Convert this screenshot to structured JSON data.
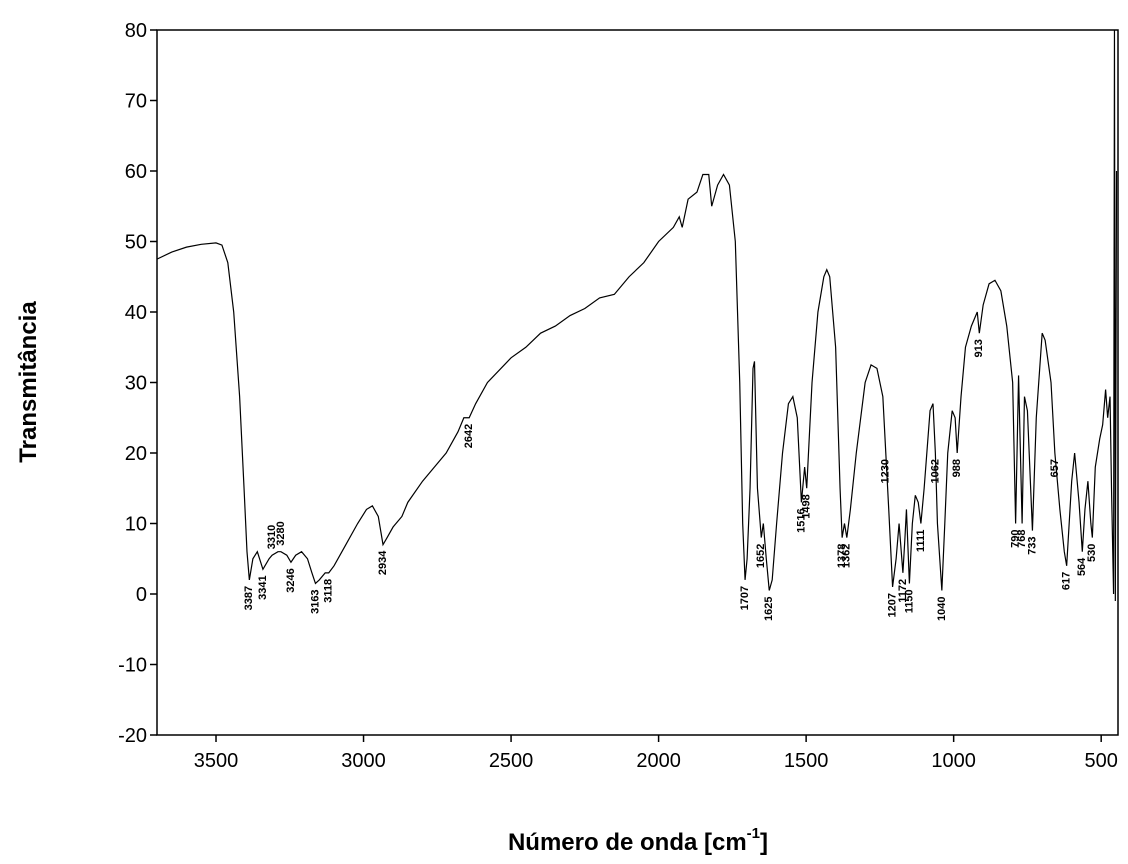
{
  "chart_data": {
    "type": "line",
    "ylabel": "Transmitância",
    "xlabel": {
      "text": "Número de onda [cm",
      "sup": "-1",
      "after": "]"
    },
    "xlim": [
      3700,
      443
    ],
    "ylim": [
      -20,
      80
    ],
    "xticks": [
      3500,
      3000,
      2500,
      2000,
      1500,
      1000,
      500
    ],
    "yticks": [
      -20,
      -10,
      0,
      10,
      20,
      30,
      40,
      50,
      60,
      70,
      80
    ],
    "color": "#000000",
    "x": [
      3700,
      3650,
      3600,
      3550,
      3500,
      3480,
      3460,
      3440,
      3420,
      3405,
      3395,
      3387,
      3375,
      3360,
      3341,
      3320,
      3310,
      3290,
      3280,
      3260,
      3246,
      3230,
      3210,
      3190,
      3175,
      3163,
      3150,
      3130,
      3118,
      3100,
      3060,
      3020,
      2990,
      2970,
      2950,
      2934,
      2920,
      2900,
      2870,
      2850,
      2800,
      2760,
      2720,
      2680,
      2660,
      2642,
      2620,
      2580,
      2500,
      2450,
      2400,
      2350,
      2300,
      2250,
      2200,
      2150,
      2100,
      2050,
      2000,
      1950,
      1930,
      1920,
      1900,
      1870,
      1850,
      1830,
      1820,
      1800,
      1780,
      1760,
      1740,
      1725,
      1715,
      1707,
      1700,
      1690,
      1680,
      1675,
      1665,
      1652,
      1645,
      1635,
      1625,
      1615,
      1600,
      1580,
      1560,
      1545,
      1530,
      1516,
      1505,
      1498,
      1480,
      1460,
      1440,
      1430,
      1420,
      1400,
      1385,
      1378,
      1370,
      1362,
      1350,
      1330,
      1300,
      1280,
      1260,
      1240,
      1230,
      1220,
      1207,
      1195,
      1185,
      1172,
      1165,
      1160,
      1150,
      1140,
      1130,
      1120,
      1111,
      1100,
      1080,
      1070,
      1062,
      1055,
      1040,
      1030,
      1020,
      1005,
      995,
      988,
      975,
      960,
      940,
      920,
      913,
      900,
      880,
      860,
      840,
      820,
      800,
      790,
      780,
      768,
      760,
      750,
      733,
      720,
      700,
      690,
      670,
      657,
      640,
      625,
      617,
      600,
      590,
      575,
      564,
      555,
      545,
      535,
      530,
      520,
      505,
      495,
      485,
      478,
      470,
      465,
      458,
      455,
      452,
      448
    ],
    "y": [
      47.5,
      48.5,
      49.2,
      49.6,
      49.8,
      49.5,
      47,
      40,
      28,
      15,
      6,
      2,
      5,
      6,
      3.5,
      5,
      5.5,
      6,
      6,
      5.5,
      4.5,
      5.5,
      6,
      5,
      3,
      1.5,
      2,
      3,
      3,
      4,
      7,
      10,
      12,
      12.5,
      11,
      7,
      8,
      9.5,
      11,
      13,
      16,
      18,
      20,
      23,
      25,
      25,
      27,
      30,
      33.5,
      35,
      37,
      38,
      39.5,
      40.5,
      42,
      42.5,
      45,
      47,
      50,
      52,
      53.5,
      52,
      56,
      57,
      59.5,
      59.5,
      55,
      58,
      59.5,
      58,
      50,
      30,
      10,
      2,
      5,
      15,
      32,
      33,
      15,
      8,
      10,
      5,
      0.5,
      2,
      10,
      20,
      27,
      28,
      25,
      13,
      18,
      15,
      30,
      40,
      45,
      46,
      45,
      35,
      15,
      8,
      10,
      8,
      12,
      20,
      30,
      32.5,
      32,
      28,
      20,
      12,
      1,
      5,
      10,
      3,
      8,
      12,
      1.5,
      10,
      14,
      13,
      10,
      15,
      26,
      27,
      20,
      10,
      0.5,
      10,
      20,
      26,
      25,
      20,
      28,
      35,
      38,
      40,
      37,
      41,
      44,
      44.5,
      43,
      38,
      30,
      10,
      31,
      10,
      28,
      26,
      9,
      25,
      37,
      36,
      30,
      20,
      12,
      6,
      4,
      16,
      20,
      13,
      6,
      12,
      16,
      10,
      8,
      18,
      22,
      24,
      29,
      25,
      28,
      15,
      0,
      80,
      -1,
      60
    ],
    "annotations": [
      {
        "x": 3387,
        "y": 2,
        "label": "3387"
      },
      {
        "x": 3341,
        "y": 3.5,
        "label": "3341"
      },
      {
        "x": 3310,
        "y": 5.5,
        "label": "3310",
        "placement": "above"
      },
      {
        "x": 3280,
        "y": 6,
        "label": "3280",
        "placement": "above"
      },
      {
        "x": 3246,
        "y": 4.5,
        "label": "3246"
      },
      {
        "x": 3163,
        "y": 1.5,
        "label": "3163"
      },
      {
        "x": 3118,
        "y": 3,
        "label": "3118"
      },
      {
        "x": 2934,
        "y": 7,
        "label": "2934"
      },
      {
        "x": 2642,
        "y": 25,
        "label": "2642"
      },
      {
        "x": 1707,
        "y": 2,
        "label": "1707"
      },
      {
        "x": 1652,
        "y": 8,
        "label": "1652"
      },
      {
        "x": 1625,
        "y": 0.5,
        "label": "1625"
      },
      {
        "x": 1516,
        "y": 13,
        "label": "1516"
      },
      {
        "x": 1498,
        "y": 15,
        "label": "1498"
      },
      {
        "x": 1378,
        "y": 8,
        "label": "1378"
      },
      {
        "x": 1362,
        "y": 8,
        "label": "1362"
      },
      {
        "x": 1230,
        "y": 20,
        "label": "1230"
      },
      {
        "x": 1207,
        "y": 1,
        "label": "1207"
      },
      {
        "x": 1172,
        "y": 3,
        "label": "1172"
      },
      {
        "x": 1150,
        "y": 1.5,
        "label": "1150"
      },
      {
        "x": 1111,
        "y": 10,
        "label": "1111"
      },
      {
        "x": 1062,
        "y": 20,
        "label": "1062"
      },
      {
        "x": 1040,
        "y": 0.5,
        "label": "1040"
      },
      {
        "x": 988,
        "y": 20,
        "label": "988"
      },
      {
        "x": 913,
        "y": 37,
        "label": "913"
      },
      {
        "x": 790,
        "y": 10,
        "label": "790"
      },
      {
        "x": 768,
        "y": 10,
        "label": "768"
      },
      {
        "x": 733,
        "y": 9,
        "label": "733"
      },
      {
        "x": 657,
        "y": 20,
        "label": "657"
      },
      {
        "x": 617,
        "y": 4,
        "label": "617"
      },
      {
        "x": 564,
        "y": 6,
        "label": "564"
      },
      {
        "x": 530,
        "y": 8,
        "label": "530"
      }
    ]
  }
}
